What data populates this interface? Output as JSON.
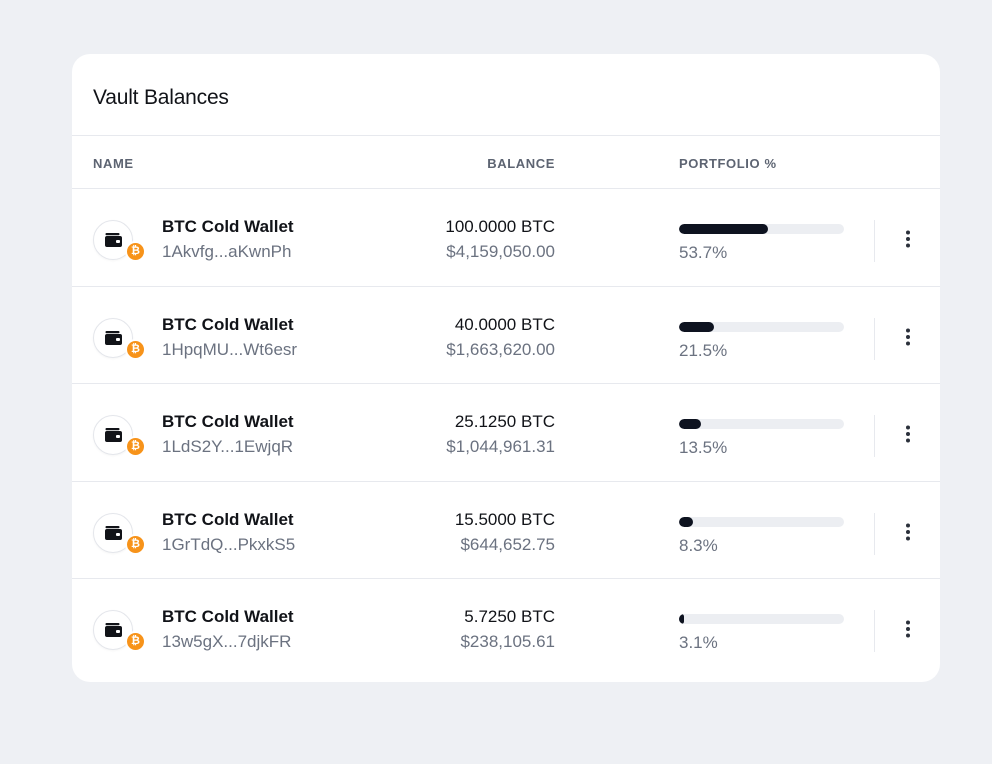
{
  "card": {
    "title": "Vault Balances"
  },
  "columns": {
    "name": "NAME",
    "balance": "BALANCE",
    "portfolio": "PORTFOLIO %"
  },
  "icons": {
    "wallet": "wallet-icon",
    "badge": "bitcoin-icon",
    "badge_glyph": "₿",
    "menu": "more-vertical-icon"
  },
  "colors": {
    "bar_fill": "#0e1320",
    "bar_track": "#eceef2",
    "bitcoin": "#f7931a",
    "background": "#eef0f4"
  },
  "rows": [
    {
      "name": "BTC Cold Wallet",
      "address": "1Akvfg...aKwnPh",
      "crypto_balance": "100.0000 BTC",
      "fiat_balance": "$4,159,050.00",
      "portfolio_label": "53.7%",
      "portfolio_fraction": 0.537
    },
    {
      "name": "BTC Cold Wallet",
      "address": "1HpqMU...Wt6esr",
      "crypto_balance": "40.0000 BTC",
      "fiat_balance": "$1,663,620.00",
      "portfolio_label": "21.5%",
      "portfolio_fraction": 0.215
    },
    {
      "name": "BTC Cold Wallet",
      "address": "1LdS2Y...1EwjqR",
      "crypto_balance": "25.1250 BTC",
      "fiat_balance": "$1,044,961.31",
      "portfolio_label": "13.5%",
      "portfolio_fraction": 0.135
    },
    {
      "name": "BTC Cold Wallet",
      "address": "1GrTdQ...PkxkS5",
      "crypto_balance": "15.5000 BTC",
      "fiat_balance": "$644,652.75",
      "portfolio_label": "8.3%",
      "portfolio_fraction": 0.083
    },
    {
      "name": "BTC Cold Wallet",
      "address": "13w5gX...7djkFR",
      "crypto_balance": "5.7250 BTC",
      "fiat_balance": "$238,105.61",
      "portfolio_label": "3.1%",
      "portfolio_fraction": 0.031
    }
  ]
}
